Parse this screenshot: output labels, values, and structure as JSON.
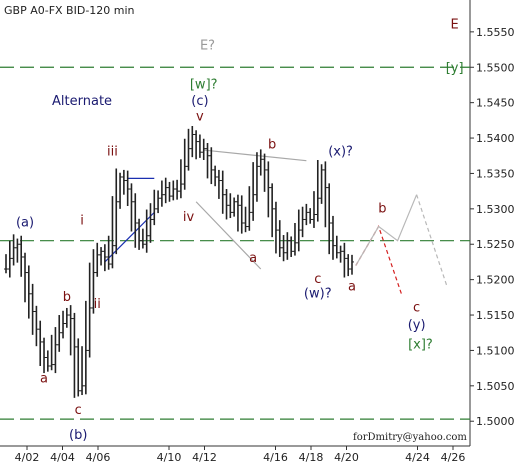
{
  "chart_data": {
    "type": "bar",
    "title": "GBP A0-FX BID-120 min",
    "watermark": "forDmitry@yahoo.com",
    "y_range": [
      1.4965,
      1.5595
    ],
    "y_ticks": [
      1.5,
      1.505,
      1.51,
      1.515,
      1.52,
      1.525,
      1.53,
      1.535,
      1.54,
      1.545,
      1.55,
      1.555
    ],
    "y_tick_labels": [
      "1.5000",
      "1.5050",
      "1.5100",
      "1.5150",
      "1.5200",
      "1.5250",
      "1.5300",
      "1.5350",
      "1.5400",
      "1.5450",
      "1.5500",
      "1.5550"
    ],
    "x_ticks": [
      {
        "date": "2013-04-02",
        "label": "4/02"
      },
      {
        "date": "2013-04-04",
        "label": "4/04"
      },
      {
        "date": "2013-04-06",
        "label": "4/06"
      },
      {
        "date": "2013-04-10",
        "label": "4/10"
      },
      {
        "date": "2013-04-12",
        "label": "4/12"
      },
      {
        "date": "2013-04-16",
        "label": "4/16"
      },
      {
        "date": "2013-04-18",
        "label": "4/18"
      },
      {
        "date": "2013-04-20",
        "label": "4/20"
      },
      {
        "date": "2013-04-24",
        "label": "4/24"
      },
      {
        "date": "2013-04-26",
        "label": "4/26"
      }
    ],
    "grid": false,
    "colors": {
      "price": "#222222",
      "level_line": "#2e7d32",
      "channel_blue": "#1a2fb0",
      "channel_gray": "#a8a8a8",
      "projection_red": "#d42020",
      "projection_gray": "#b8b8b8",
      "wave_dark_red": "#7a1010",
      "wave_navy": "#1a1a70",
      "wave_green": "#2e7d32",
      "wave_gray": "#9a9a9a"
    },
    "levels": [
      {
        "price": 1.55,
        "style": "dashed"
      },
      {
        "price": 1.5255,
        "style": "dashed"
      },
      {
        "price": 1.5003,
        "style": "dashed"
      }
    ],
    "price_path": [
      [
        0,
        1.5215
      ],
      [
        1,
        1.523
      ],
      [
        2,
        1.5245
      ],
      [
        3,
        1.525
      ],
      [
        4,
        1.5232
      ],
      [
        5,
        1.521
      ],
      [
        6,
        1.518
      ],
      [
        7,
        1.5155
      ],
      [
        8,
        1.513
      ],
      [
        9,
        1.5112
      ],
      [
        10,
        1.509
      ],
      [
        11,
        1.5078
      ],
      [
        12,
        1.508
      ],
      [
        13,
        1.5108
      ],
      [
        14,
        1.5125
      ],
      [
        15,
        1.5138
      ],
      [
        16,
        1.515
      ],
      [
        17,
        1.5145
      ],
      [
        18,
        1.5105
      ],
      [
        19,
        1.5043
      ],
      [
        20,
        1.505
      ],
      [
        21,
        1.51
      ],
      [
        22,
        1.516
      ],
      [
        23,
        1.521
      ],
      [
        24,
        1.5235
      ],
      [
        25,
        1.524
      ],
      [
        26,
        1.5232
      ],
      [
        27,
        1.5222
      ],
      [
        28,
        1.5248
      ],
      [
        29,
        1.531
      ],
      [
        30,
        1.5345
      ],
      [
        31,
        1.534
      ],
      [
        32,
        1.5328
      ],
      [
        33,
        1.531
      ],
      [
        34,
        1.528
      ],
      [
        35,
        1.5255
      ],
      [
        36,
        1.525
      ],
      [
        37,
        1.5262
      ],
      [
        38,
        1.5285
      ],
      [
        39,
        1.53
      ],
      [
        40,
        1.5315
      ],
      [
        41,
        1.532
      ],
      [
        42,
        1.533
      ],
      [
        43,
        1.5318
      ],
      [
        44,
        1.5328
      ],
      [
        45,
        1.5325
      ],
      [
        46,
        1.5335
      ],
      [
        47,
        1.536
      ],
      [
        48,
        1.5385
      ],
      [
        49,
        1.5405
      ],
      [
        50,
        1.5395
      ],
      [
        51,
        1.538
      ],
      [
        52,
        1.5385
      ],
      [
        53,
        1.5375
      ],
      [
        54,
        1.5355
      ],
      [
        55,
        1.5345
      ],
      [
        56,
        1.534
      ],
      [
        57,
        1.532
      ],
      [
        58,
        1.5305
      ],
      [
        59,
        1.5295
      ],
      [
        60,
        1.531
      ],
      [
        61,
        1.5305
      ],
      [
        62,
        1.528
      ],
      [
        63,
        1.5275
      ],
      [
        64,
        1.5295
      ],
      [
        65,
        1.532
      ],
      [
        66,
        1.536
      ],
      [
        67,
        1.537
      ],
      [
        68,
        1.5355
      ],
      [
        69,
        1.533
      ],
      [
        70,
        1.53
      ],
      [
        71,
        1.527
      ],
      [
        72,
        1.5245
      ],
      [
        73,
        1.5238
      ],
      [
        74,
        1.5255
      ],
      [
        75,
        1.524
      ],
      [
        76,
        1.5252
      ],
      [
        77,
        1.527
      ],
      [
        78,
        1.5285
      ],
      [
        79,
        1.5295
      ],
      [
        80,
        1.5285
      ],
      [
        81,
        1.5292
      ],
      [
        82,
        1.5315
      ],
      [
        83,
        1.5355
      ],
      [
        84,
        1.533
      ],
      [
        85,
        1.528
      ],
      [
        86,
        1.5248
      ],
      [
        87,
        1.5238
      ],
      [
        88,
        1.524
      ],
      [
        89,
        1.523
      ],
      [
        90,
        1.5215
      ],
      [
        91,
        1.5225
      ]
    ],
    "bar_index_span": [
      0,
      91
    ],
    "channels": [
      {
        "color_key": "channel_blue",
        "points": [
          [
            26,
            1.5225
          ],
          [
            39,
            1.5295
          ]
        ]
      },
      {
        "color_key": "channel_blue",
        "points": [
          [
            32,
            1.5343
          ],
          [
            39,
            1.5343
          ]
        ]
      },
      {
        "color_key": "channel_gray",
        "points": [
          [
            52,
            1.5383
          ],
          [
            79,
            1.5368
          ]
        ]
      },
      {
        "color_key": "channel_gray",
        "points": [
          [
            50,
            1.531
          ],
          [
            67,
            1.5215
          ]
        ]
      }
    ],
    "projections": [
      {
        "color_key": "projection_red",
        "dash": "4 3",
        "points": [
          [
            92,
            1.522
          ],
          [
            98,
            1.5275
          ],
          [
            104,
            1.518
          ]
        ]
      },
      {
        "color_key": "projection_gray",
        "dash": "0",
        "points": [
          [
            92,
            1.522
          ],
          [
            98,
            1.5275
          ],
          [
            103,
            1.5255
          ],
          [
            108,
            1.532
          ]
        ]
      },
      {
        "color_key": "projection_gray",
        "dash": "4 3",
        "points": [
          [
            108,
            1.532
          ],
          [
            116,
            1.519
          ]
        ]
      }
    ],
    "wave_labels": [
      {
        "text": "(a)",
        "bar": 5,
        "price": 1.5275,
        "color_key": "wave_navy"
      },
      {
        "text": "a",
        "bar": 10,
        "price": 1.5055,
        "color_key": "wave_dark_red"
      },
      {
        "text": "b",
        "bar": 16,
        "price": 1.517,
        "color_key": "wave_dark_red"
      },
      {
        "text": "c",
        "bar": 19,
        "price": 1.501,
        "color_key": "wave_dark_red"
      },
      {
        "text": "(b)",
        "bar": 19,
        "price": 1.4975,
        "color_key": "wave_navy"
      },
      {
        "text": "i",
        "bar": 20,
        "price": 1.5278,
        "color_key": "wave_dark_red"
      },
      {
        "text": "ii",
        "bar": 24,
        "price": 1.516,
        "color_key": "wave_dark_red"
      },
      {
        "text": "iii",
        "bar": 28,
        "price": 1.5375,
        "color_key": "wave_dark_red"
      },
      {
        "text": "iv",
        "bar": 48,
        "price": 1.5283,
        "color_key": "wave_dark_red"
      },
      {
        "text": "v",
        "bar": 51,
        "price": 1.5425,
        "color_key": "wave_dark_red"
      },
      {
        "text": "(c)",
        "bar": 51,
        "price": 1.5447,
        "color_key": "wave_navy"
      },
      {
        "text": "[w]?",
        "bar": 52,
        "price": 1.547,
        "color_key": "wave_green"
      },
      {
        "text": "E?",
        "bar": 53,
        "price": 1.5525,
        "color_key": "wave_gray",
        "size": 20
      },
      {
        "text": "Alternate",
        "bar": 20,
        "price": 1.5447,
        "color_key": "wave_navy",
        "size": 14
      },
      {
        "text": "b",
        "bar": 70,
        "price": 1.5385,
        "color_key": "wave_dark_red"
      },
      {
        "text": "a",
        "bar": 65,
        "price": 1.5225,
        "color_key": "wave_dark_red"
      },
      {
        "text": "(x)?",
        "bar": 88,
        "price": 1.5375,
        "color_key": "wave_navy"
      },
      {
        "text": "c",
        "bar": 82,
        "price": 1.5195,
        "color_key": "wave_dark_red"
      },
      {
        "text": "(w)?",
        "bar": 82,
        "price": 1.5175,
        "color_key": "wave_navy"
      },
      {
        "text": "a",
        "bar": 91,
        "price": 1.5185,
        "color_key": "wave_dark_red"
      },
      {
        "text": "b",
        "bar": 99,
        "price": 1.5295,
        "color_key": "wave_dark_red"
      },
      {
        "text": "c",
        "bar": 108,
        "price": 1.5155,
        "color_key": "wave_dark_red"
      },
      {
        "text": "(y)",
        "bar": 108,
        "price": 1.513,
        "color_key": "wave_navy",
        "size": 15
      },
      {
        "text": "[x]?",
        "bar": 109,
        "price": 1.5103,
        "color_key": "wave_green",
        "size": 14
      },
      {
        "text": "E",
        "bar": 118,
        "price": 1.5555,
        "color_key": "wave_dark_red",
        "size": 22
      },
      {
        "text": "[y]",
        "bar": 118,
        "price": 1.5493,
        "color_key": "wave_green",
        "size": 14
      }
    ]
  }
}
